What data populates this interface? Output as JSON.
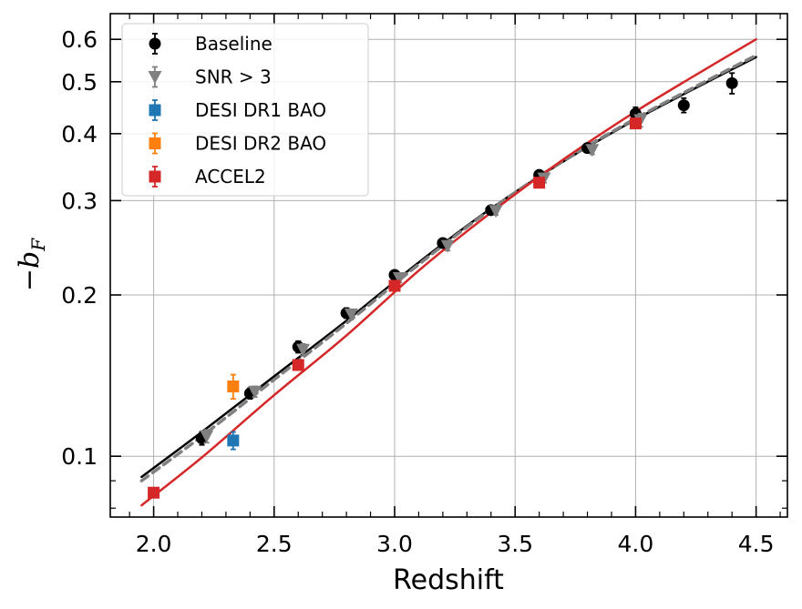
{
  "chart_data": {
    "type": "scatter",
    "title": "",
    "xlabel": "Redshift",
    "ylabel": "−b_F",
    "ylabel_display": {
      "sign": "−b",
      "sub": "F"
    },
    "xlim": [
      1.82,
      4.63
    ],
    "ylim": [
      0.077,
      0.67
    ],
    "yscale": "log",
    "grid": true,
    "legend_position": "upper-left",
    "x_ticks": [
      2.0,
      2.5,
      3.0,
      3.5,
      4.0,
      4.5
    ],
    "x_tick_labels": [
      "2.0",
      "2.5",
      "3.0",
      "3.5",
      "4.0",
      "4.5"
    ],
    "x_minor_ticks": [
      1.9,
      2.1,
      2.2,
      2.3,
      2.4,
      2.6,
      2.7,
      2.8,
      2.9,
      3.1,
      3.2,
      3.3,
      3.4,
      3.6,
      3.7,
      3.8,
      3.9,
      4.1,
      4.2,
      4.3,
      4.4,
      4.6
    ],
    "y_ticks": [
      0.1,
      0.2,
      0.3,
      0.4,
      0.5,
      0.6
    ],
    "y_tick_labels": [
      "0.1",
      "0.2",
      "0.3",
      "0.4",
      "0.5",
      "0.6"
    ],
    "y_minor_ticks": [
      0.08,
      0.09
    ],
    "series": [
      {
        "name": "Baseline",
        "kind": "points",
        "marker": "circle",
        "color": "#000000",
        "x": [
          2.2,
          2.4,
          2.6,
          2.8,
          3.0,
          3.2,
          3.4,
          3.6,
          3.8,
          4.0,
          4.2,
          4.4
        ],
        "y": [
          0.108,
          0.131,
          0.16,
          0.185,
          0.218,
          0.25,
          0.288,
          0.335,
          0.376,
          0.436,
          0.452,
          0.497
        ],
        "yerr": [
          0.003,
          0.003,
          0.004,
          0.004,
          0.004,
          0.005,
          0.005,
          0.006,
          0.007,
          0.012,
          0.014,
          0.022
        ]
      },
      {
        "name": "SNR > 3",
        "kind": "points",
        "marker": "triangle-down",
        "color": "#808080",
        "x": [
          2.22,
          2.42,
          2.62,
          2.82,
          3.02,
          3.22,
          3.42,
          3.62,
          3.82,
          4.02
        ],
        "y": [
          0.109,
          0.132,
          0.158,
          0.184,
          0.215,
          0.247,
          0.287,
          0.33,
          0.373,
          0.424
        ],
        "yerr": [
          0.003,
          0.003,
          0.004,
          0.004,
          0.004,
          0.005,
          0.005,
          0.006,
          0.007,
          0.012
        ]
      },
      {
        "name": "DESI DR1 BAO",
        "kind": "points",
        "marker": "square",
        "color": "#1f77b4",
        "x": [
          2.33
        ],
        "y": [
          0.107
        ],
        "yerr": [
          0.004
        ]
      },
      {
        "name": "DESI DR2 BAO",
        "kind": "points",
        "marker": "square",
        "color": "#ff7f0e",
        "x": [
          2.33
        ],
        "y": [
          0.135
        ],
        "yerr": [
          0.007
        ]
      },
      {
        "name": "ACCEL2",
        "kind": "points",
        "marker": "square",
        "color": "#d62728",
        "x": [
          2.0,
          2.6,
          3.0,
          3.6,
          4.0
        ],
        "y": [
          0.0855,
          0.148,
          0.208,
          0.324,
          0.418
        ],
        "yerr": [
          0.001,
          0.002,
          0.003,
          0.004,
          0.006
        ]
      },
      {
        "name": "Baseline fit",
        "kind": "line",
        "style": "solid",
        "color": "#000000",
        "x": [
          1.95,
          2.2,
          2.5,
          2.8,
          3.1,
          3.4,
          3.7,
          4.0,
          4.25,
          4.5
        ],
        "y": [
          0.0915,
          0.111,
          0.141,
          0.179,
          0.23,
          0.29,
          0.355,
          0.425,
          0.487,
          0.556
        ]
      },
      {
        "name": "SNR > 3 fit",
        "kind": "line",
        "style": "dashed",
        "color": "#808080",
        "x": [
          1.95,
          2.2,
          2.5,
          2.8,
          3.1,
          3.4,
          3.7,
          4.0,
          4.25,
          4.5
        ],
        "y": [
          0.09,
          0.109,
          0.139,
          0.177,
          0.228,
          0.289,
          0.356,
          0.427,
          0.49,
          0.56
        ]
      },
      {
        "name": "ACCEL2 fit",
        "kind": "line",
        "style": "solid",
        "color": "#d62728",
        "x": [
          1.95,
          2.2,
          2.5,
          2.8,
          3.1,
          3.4,
          3.7,
          4.0,
          4.25,
          4.5
        ],
        "y": [
          0.081,
          0.0995,
          0.13,
          0.168,
          0.222,
          0.285,
          0.358,
          0.44,
          0.515,
          0.6
        ]
      }
    ]
  }
}
